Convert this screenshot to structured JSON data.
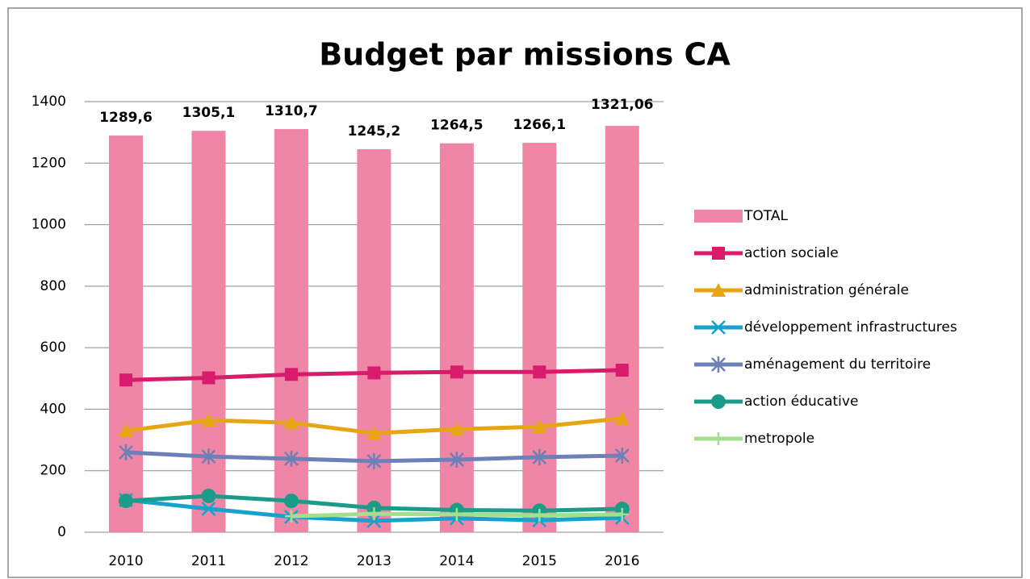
{
  "chart_data": {
    "type": "bar",
    "title": "Budget par missions CA",
    "categories": [
      "2010",
      "2011",
      "2012",
      "2013",
      "2014",
      "2015",
      "2016"
    ],
    "ylim": [
      0,
      1400
    ],
    "yticks": [
      0,
      200,
      400,
      600,
      800,
      1000,
      1200,
      1400
    ],
    "grid": true,
    "legend": "right",
    "series": [
      {
        "name": "TOTAL",
        "type": "bar",
        "color": "#ef86a6",
        "values": [
          1289.6,
          1305.1,
          1310.7,
          1245.2,
          1264.5,
          1266.1,
          1321.06
        ],
        "value_labels": [
          "1289,6",
          "1305,1",
          "1310,7",
          "1245,2",
          "1264,5",
          "1266,1",
          "1321,06"
        ]
      },
      {
        "name": "action sociale",
        "type": "line",
        "marker": "square",
        "color": "#d81b6a",
        "values": [
          495,
          502,
          513,
          518,
          521,
          521,
          527
        ]
      },
      {
        "name": "administration générale",
        "type": "line",
        "marker": "triangle",
        "color": "#e6a514",
        "values": [
          330,
          364,
          356,
          322,
          335,
          343,
          370
        ]
      },
      {
        "name": "développement infrastructures",
        "type": "line",
        "marker": "x",
        "color": "#17a2cc",
        "values": [
          105,
          76,
          50,
          37,
          45,
          39,
          47
        ]
      },
      {
        "name": "aménagement du territoire",
        "type": "line",
        "marker": "asterisk",
        "color": "#6d80b8",
        "values": [
          260,
          246,
          239,
          231,
          236,
          244,
          249
        ]
      },
      {
        "name": "action éducative",
        "type": "line",
        "marker": "circle",
        "color": "#1a9c89",
        "values": [
          102,
          118,
          102,
          79,
          72,
          70,
          76
        ]
      },
      {
        "name": "metropole",
        "type": "line",
        "marker": "plus",
        "color": "#a3df8c",
        "values": [
          null,
          null,
          52,
          60,
          58,
          55,
          58
        ]
      }
    ]
  }
}
